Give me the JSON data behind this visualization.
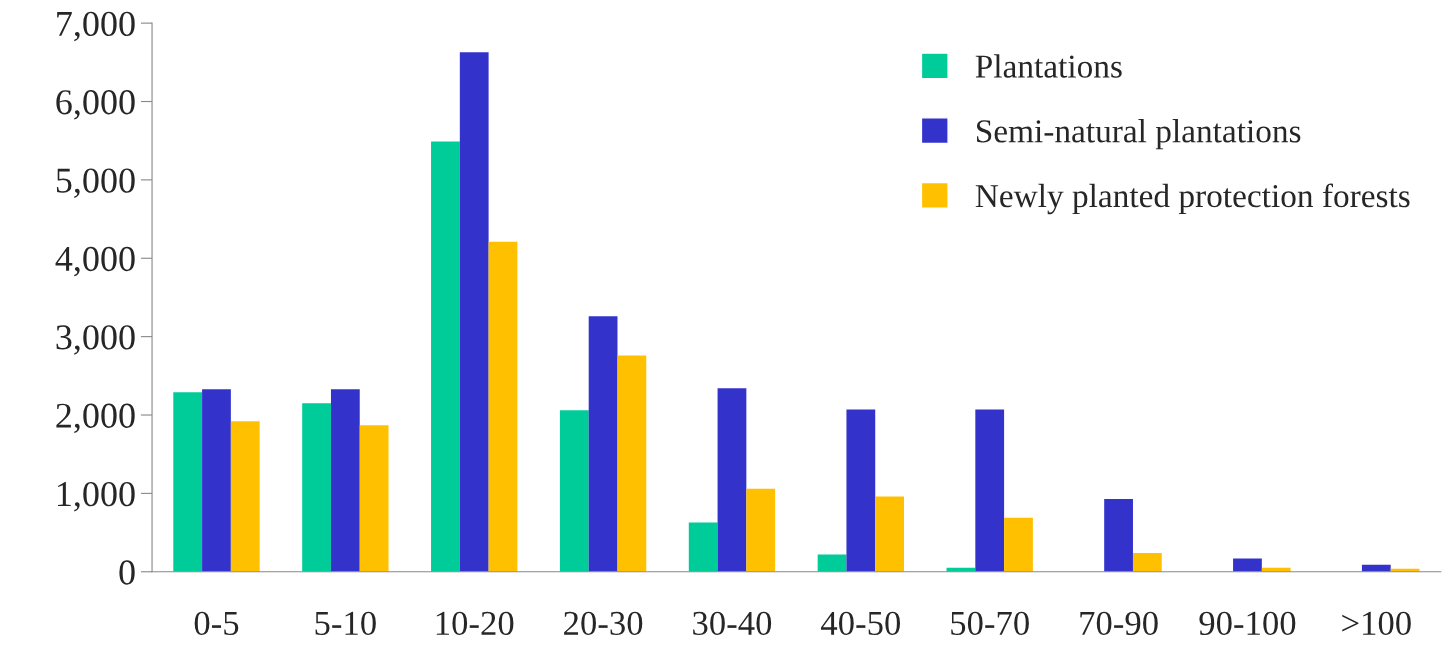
{
  "chart_data": {
    "type": "bar",
    "categories": [
      "0-5",
      "5-10",
      "10-20",
      "20-30",
      "30-40",
      "40-50",
      "50-70",
      "70-90",
      "90-100",
      ">100"
    ],
    "series": [
      {
        "name": "Plantations",
        "color": "#00cc99",
        "values": [
          2290,
          2150,
          5490,
          2060,
          630,
          220,
          50,
          null,
          null,
          null
        ]
      },
      {
        "name": "Semi-natural plantations",
        "color": "#3333cc",
        "values": [
          2330,
          2330,
          6630,
          3260,
          2340,
          2070,
          2070,
          930,
          170,
          90
        ]
      },
      {
        "name": "Newly planted protection forests",
        "color": "#ffc000",
        "values": [
          1920,
          1870,
          4210,
          2760,
          1060,
          960,
          690,
          240,
          50,
          40
        ]
      }
    ],
    "ylim": [
      0,
      7000
    ],
    "yticks": [
      {
        "value": 0,
        "label": "0"
      },
      {
        "value": 1000,
        "label": "1,000"
      },
      {
        "value": 2000,
        "label": "2,000"
      },
      {
        "value": 3000,
        "label": "3,000"
      },
      {
        "value": 4000,
        "label": "4,000"
      },
      {
        "value": 5000,
        "label": "5,000"
      },
      {
        "value": 6000,
        "label": "6,000"
      },
      {
        "value": 7000,
        "label": "7,000"
      }
    ],
    "grid": false,
    "legend": "top right"
  }
}
